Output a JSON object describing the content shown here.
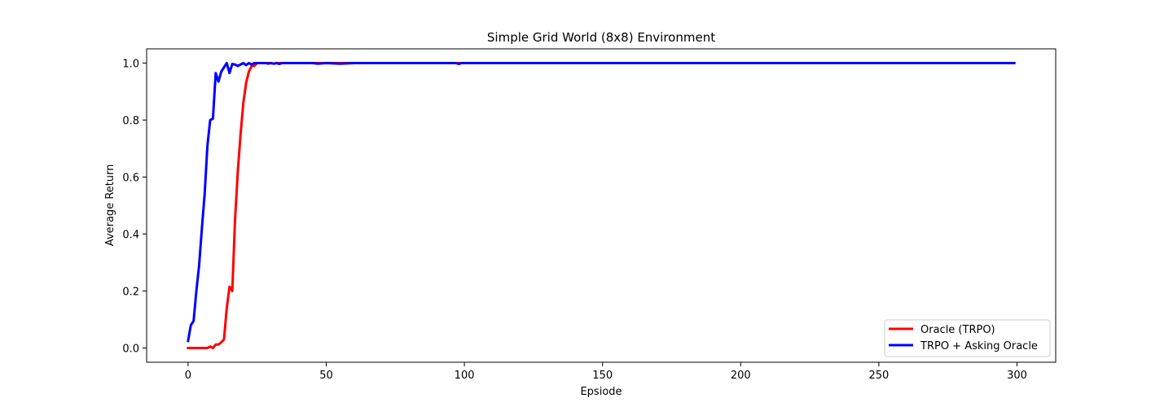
{
  "chart_data": {
    "type": "line",
    "title": "Simple Grid World (8x8) Environment",
    "xlabel": "Epsiode",
    "ylabel": "Average Return",
    "xlim": [
      -15,
      314
    ],
    "ylim": [
      -0.05,
      1.05
    ],
    "xticks": [
      0,
      50,
      100,
      150,
      200,
      250,
      300
    ],
    "yticks": [
      0.0,
      0.2,
      0.4,
      0.6,
      0.8,
      1.0
    ],
    "xtick_labels": [
      "0",
      "50",
      "100",
      "150",
      "200",
      "250",
      "300"
    ],
    "ytick_labels": [
      "0.0",
      "0.2",
      "0.4",
      "0.6",
      "0.8",
      "1.0"
    ],
    "grid": false,
    "legend_position": "bottom-right",
    "series": [
      {
        "name": "Oracle (TRPO)",
        "color": "#ff0000",
        "points": [
          [
            0,
            0.0
          ],
          [
            1,
            0.0
          ],
          [
            2,
            0.0
          ],
          [
            3,
            0.0
          ],
          [
            4,
            0.0
          ],
          [
            5,
            0.0
          ],
          [
            6,
            0.0
          ],
          [
            7,
            0.0
          ],
          [
            8,
            0.005
          ],
          [
            9,
            0.0
          ],
          [
            10,
            0.012
          ],
          [
            11,
            0.012
          ],
          [
            12,
            0.02
          ],
          [
            13,
            0.03
          ],
          [
            14,
            0.14
          ],
          [
            15,
            0.215
          ],
          [
            16,
            0.2
          ],
          [
            17,
            0.45
          ],
          [
            18,
            0.62
          ],
          [
            19,
            0.75
          ],
          [
            20,
            0.86
          ],
          [
            21,
            0.93
          ],
          [
            22,
            0.97
          ],
          [
            23,
            0.99
          ],
          [
            24,
            0.99
          ],
          [
            25,
            1.0
          ],
          [
            26,
            1.0
          ],
          [
            27,
            1.0
          ],
          [
            28,
            1.0
          ],
          [
            29,
            1.0
          ],
          [
            30,
            1.0
          ],
          [
            31,
            0.998
          ],
          [
            32,
            1.0
          ],
          [
            33,
            1.0
          ],
          [
            34,
            1.0
          ],
          [
            35,
            1.0
          ],
          [
            40,
            1.0
          ],
          [
            50,
            1.0
          ],
          [
            100,
            1.0
          ],
          [
            150,
            1.0
          ],
          [
            200,
            1.0
          ],
          [
            250,
            1.0
          ],
          [
            299,
            1.0
          ]
        ]
      },
      {
        "name": "TRPO + Asking Oracle",
        "color": "#0000ff",
        "points": [
          [
            0,
            0.025
          ],
          [
            1,
            0.08
          ],
          [
            2,
            0.095
          ],
          [
            3,
            0.2
          ],
          [
            4,
            0.29
          ],
          [
            5,
            0.42
          ],
          [
            6,
            0.54
          ],
          [
            7,
            0.71
          ],
          [
            8,
            0.8
          ],
          [
            9,
            0.805
          ],
          [
            10,
            0.965
          ],
          [
            11,
            0.935
          ],
          [
            12,
            0.97
          ],
          [
            13,
            0.985
          ],
          [
            14,
            1.0
          ],
          [
            15,
            0.965
          ],
          [
            16,
            0.997
          ],
          [
            17,
            0.995
          ],
          [
            18,
            0.99
          ],
          [
            19,
            0.995
          ],
          [
            20,
            1.0
          ],
          [
            21,
            0.993
          ],
          [
            22,
            1.0
          ],
          [
            23,
            0.995
          ],
          [
            24,
            1.0
          ],
          [
            25,
            1.0
          ],
          [
            26,
            1.0
          ],
          [
            27,
            1.0
          ],
          [
            28,
            1.0
          ],
          [
            29,
            0.998
          ],
          [
            30,
            1.0
          ],
          [
            31,
            0.998
          ],
          [
            32,
            1.0
          ],
          [
            33,
            0.997
          ],
          [
            34,
            1.0
          ],
          [
            35,
            1.0
          ],
          [
            45,
            1.0
          ],
          [
            47,
            0.998
          ],
          [
            50,
            1.0
          ],
          [
            55,
            0.998
          ],
          [
            60,
            1.0
          ],
          [
            97,
            1.0
          ],
          [
            98,
            0.997
          ],
          [
            99,
            1.0
          ],
          [
            150,
            1.0
          ],
          [
            200,
            1.0
          ],
          [
            250,
            1.0
          ],
          [
            299,
            1.0
          ]
        ]
      }
    ]
  }
}
